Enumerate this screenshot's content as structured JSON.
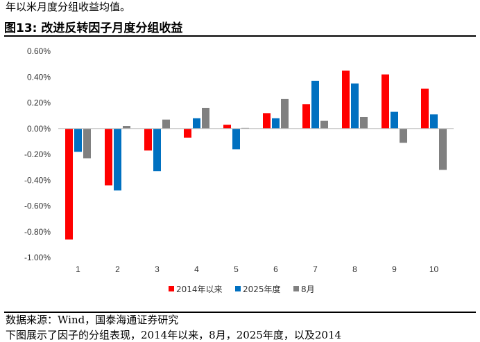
{
  "header": {
    "intro_line": "年以米月度分组收益均值。",
    "figure_title": "图13:  改进反转因子月度分组收益"
  },
  "footer": {
    "source": "数据来源：Wind，国泰海通证券研究",
    "cut_line": "下图展示了因子的分组表现，2014年以来，8月，2025年度，以及2014"
  },
  "chart_data": {
    "type": "bar",
    "categories": [
      "1",
      "2",
      "3",
      "4",
      "5",
      "6",
      "7",
      "8",
      "9",
      "10"
    ],
    "series": [
      {
        "name": "2014年以来",
        "color": "#ff0000",
        "values": [
          -0.86,
          -0.44,
          -0.17,
          -0.07,
          0.03,
          0.12,
          0.19,
          0.45,
          0.42,
          0.31
        ]
      },
      {
        "name": "2025年度",
        "color": "#0070c0",
        "values": [
          -0.18,
          -0.48,
          -0.33,
          0.08,
          -0.16,
          0.08,
          0.37,
          0.35,
          0.13,
          0.11
        ]
      },
      {
        "name": "8月",
        "color": "#808080",
        "values": [
          -0.23,
          0.02,
          0.07,
          0.16,
          0.005,
          0.23,
          0.06,
          0.09,
          -0.11,
          -0.32
        ]
      }
    ],
    "ylim": [
      -1.0,
      0.6
    ],
    "yticks": [
      "-1.00%",
      "-0.80%",
      "-0.60%",
      "-0.40%",
      "-0.20%",
      "0.00%",
      "0.20%",
      "0.40%",
      "0.60%"
    ],
    "ytick_values": [
      -1.0,
      -0.8,
      -0.6,
      -0.4,
      -0.2,
      0.0,
      0.2,
      0.4,
      0.6
    ],
    "grid": false,
    "legend_position": "bottom"
  }
}
